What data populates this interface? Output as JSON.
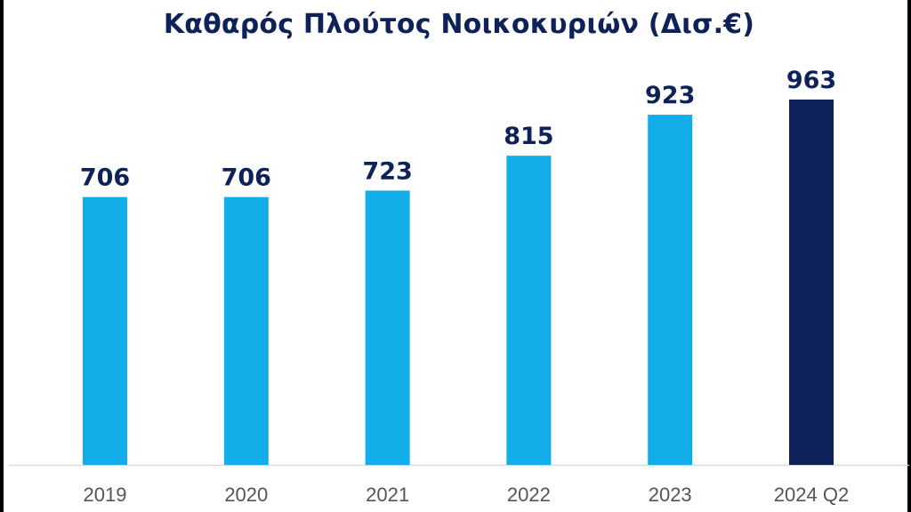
{
  "chart_data": {
    "type": "bar",
    "title": "Καθαρός Πλούτος Νοικοκυριών (Δισ.€)",
    "xlabel": "",
    "ylabel": "",
    "categories": [
      "2019",
      "2020",
      "2021",
      "2022",
      "2023",
      "2024 Q2"
    ],
    "values": [
      706,
      706,
      723,
      815,
      923,
      963
    ],
    "data_labels": [
      "706",
      "706",
      "723",
      "815",
      "923",
      "963"
    ],
    "ylim": [
      0,
      963
    ],
    "grid": false,
    "legend": "none",
    "colors": {
      "bar": "#13aeea",
      "highlight_bar": "#0e2259",
      "title": "#0e2259",
      "data_label": "#0e2259",
      "tick_label": "#555555",
      "axis_line": "#d9d9d9"
    },
    "highlight_index": 5
  }
}
